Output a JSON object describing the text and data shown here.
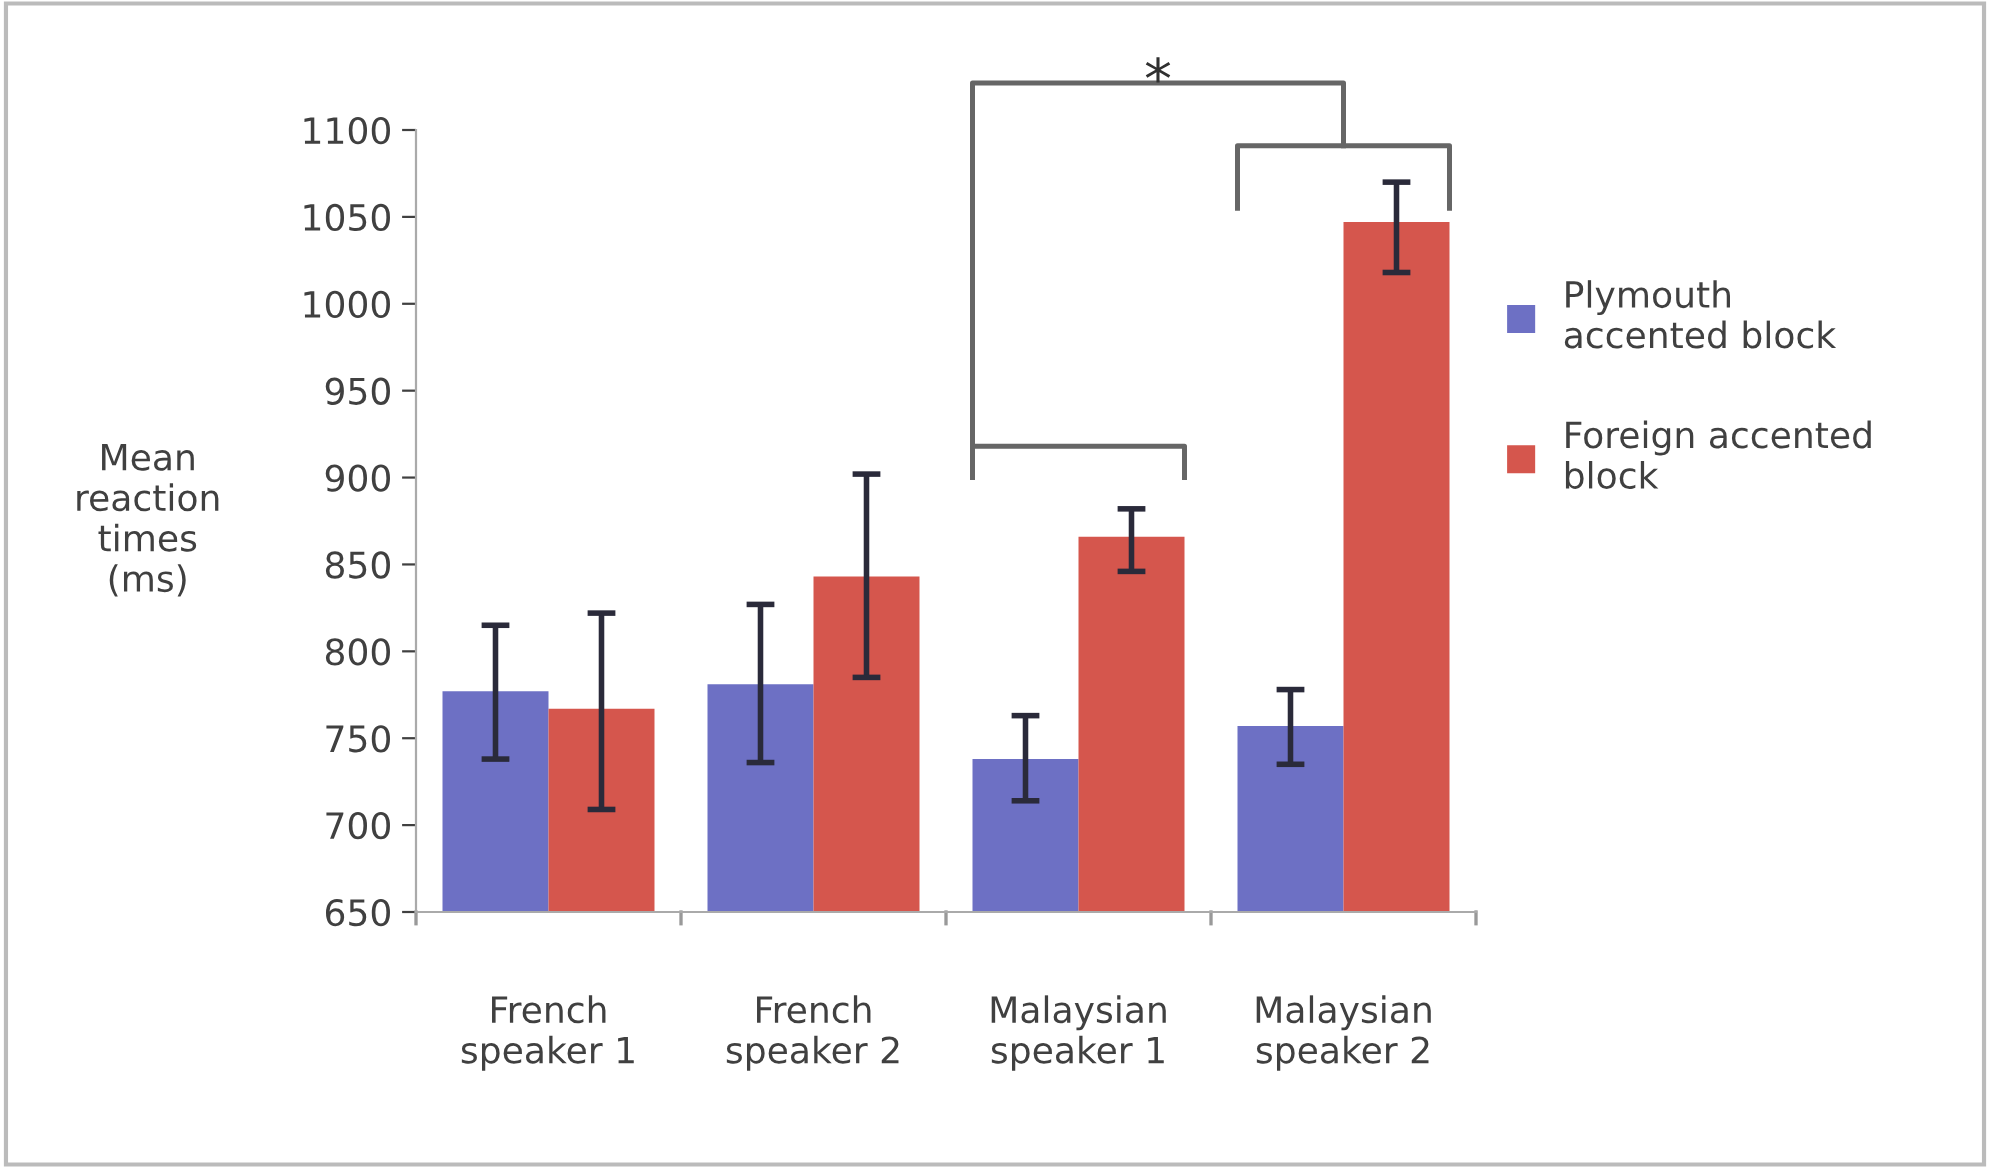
{
  "chart_data": {
    "type": "bar",
    "ylabel": "Mean\nreaction\ntimes\n(ms)",
    "categories": [
      "French\nspeaker 1",
      "French\nspeaker 2",
      "Malaysian\nspeaker 1",
      "Malaysian\nspeaker 2"
    ],
    "series": [
      {
        "name": "Plymouth\naccented block",
        "color": "#6d70c4",
        "values": [
          777,
          781,
          738,
          757
        ],
        "errors": [
          [
            738,
            815
          ],
          [
            736,
            827
          ],
          [
            714,
            763
          ],
          [
            735,
            778
          ]
        ]
      },
      {
        "name": "Foreign accented\nblock",
        "color": "#d5564d",
        "values": [
          767,
          843,
          866,
          1047
        ],
        "errors": [
          [
            709,
            822
          ],
          [
            785,
            902
          ],
          [
            846,
            882
          ],
          [
            1018,
            1070
          ]
        ]
      }
    ],
    "ylim": [
      650,
      1100
    ],
    "yticks": [
      650,
      700,
      750,
      800,
      850,
      900,
      950,
      1000,
      1050,
      1100
    ],
    "annotations": [
      "*"
    ],
    "grid": false,
    "legend": "right"
  }
}
